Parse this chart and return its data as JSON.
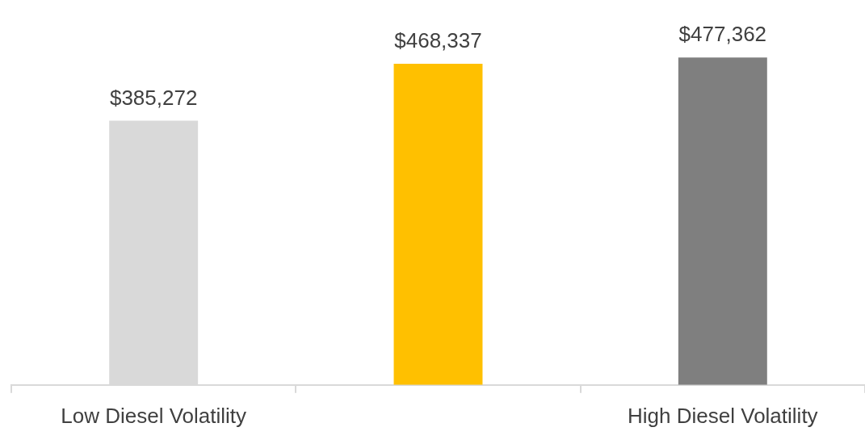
{
  "chart_data": {
    "type": "bar",
    "categories": [
      "Low Diesel Volatility",
      null,
      "High Diesel Volatility"
    ],
    "values": [
      385272,
      468337,
      477362
    ],
    "colors": [
      "#d9d9d9",
      "#ffc000",
      "#7f7f7f"
    ],
    "value_labels": [
      "$385,272",
      "$468,337",
      "$477,362"
    ],
    "tick_labels": "x",
    "grid": false,
    "legend": false
  }
}
